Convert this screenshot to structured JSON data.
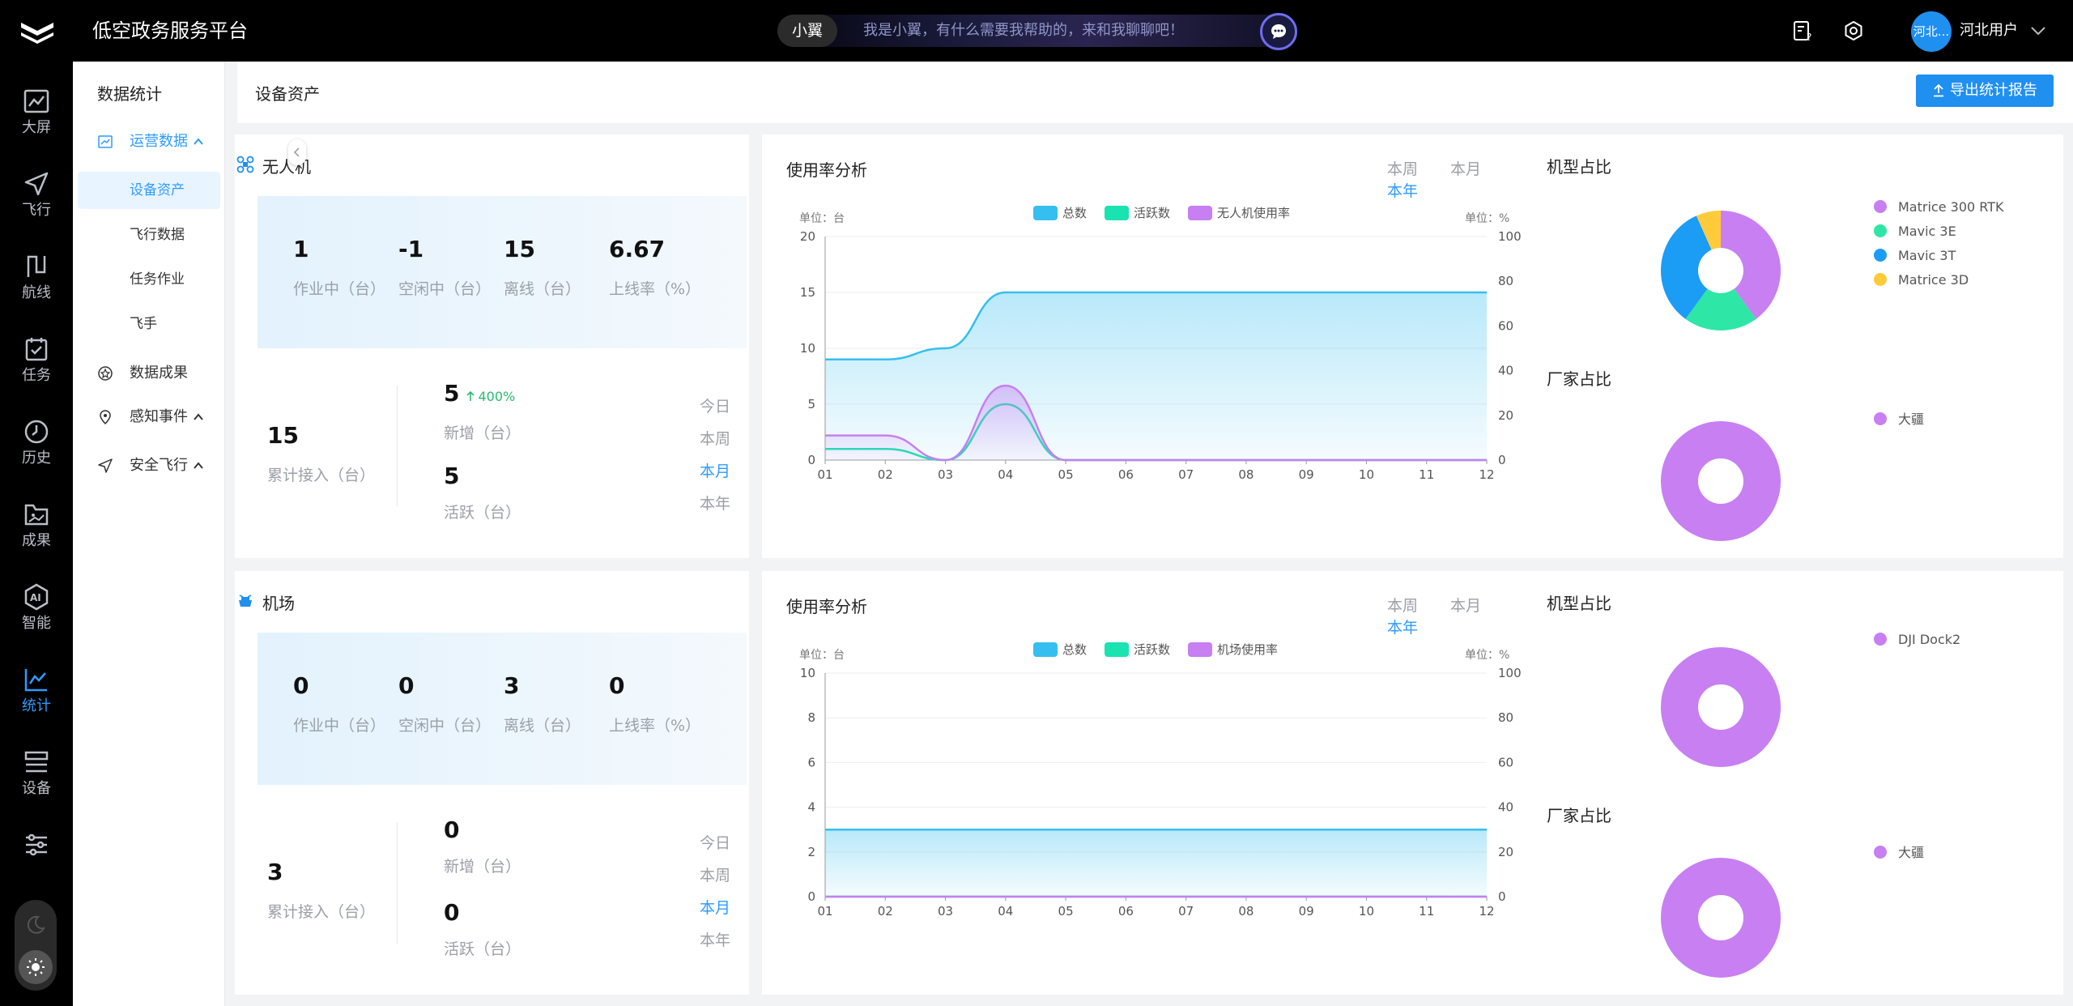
{
  "topbar": {
    "title": "低空政务服务平台",
    "assistant_name": "小翼",
    "assistant_prompt": "我是小翼，有什么需要我帮助的，来和我聊聊吧！",
    "avatar_text": "河北...",
    "user_name": "河北用户"
  },
  "leftnav": [
    {
      "label": "大屏",
      "icon": "monitor-chart-icon"
    },
    {
      "label": "飞行",
      "icon": "paper-plane-icon"
    },
    {
      "label": "航线",
      "icon": "route-icon"
    },
    {
      "label": "任务",
      "icon": "task-checklist-icon"
    },
    {
      "label": "历史",
      "icon": "clock-icon"
    },
    {
      "label": "成果",
      "icon": "result-folder-icon"
    },
    {
      "label": "智能",
      "icon": "ai-icon"
    },
    {
      "label": "统计",
      "icon": "statistics-icon",
      "active": true
    },
    {
      "label": "设备",
      "icon": "device-list-icon"
    },
    {
      "label": "",
      "icon": "settings-sliders-icon"
    }
  ],
  "subnav": {
    "title": "数据统计",
    "groups": [
      {
        "label": "运营数据",
        "open": true,
        "children": [
          "设备资产",
          "飞行数据",
          "任务作业",
          "飞手"
        ]
      },
      {
        "label": "数据成果"
      },
      {
        "label": "感知事件"
      },
      {
        "label": "安全飞行"
      }
    ],
    "active_child": "设备资产"
  },
  "page": {
    "title": "设备资产",
    "export_label": "导出统计报告"
  },
  "drone": {
    "title": "无人机",
    "kpis": [
      {
        "value": "1",
        "label": "作业中（台）"
      },
      {
        "value": "-1",
        "label": "空闲中（台）"
      },
      {
        "value": "15",
        "label": "离线（台）"
      },
      {
        "value": "6.67",
        "label": "上线率（%）"
      }
    ],
    "total": {
      "value": "15",
      "label": "累计接入（台）"
    },
    "new": {
      "value": "5",
      "label": "新增（台）",
      "growth": "400%"
    },
    "active": {
      "value": "5",
      "label": "活跃（台）"
    },
    "periods": [
      "今日",
      "本周",
      "本月",
      "本年"
    ],
    "active_period": "本月"
  },
  "dock": {
    "title": "机场",
    "kpis": [
      {
        "value": "0",
        "label": "作业中（台）"
      },
      {
        "value": "0",
        "label": "空闲中（台）"
      },
      {
        "value": "3",
        "label": "离线（台）"
      },
      {
        "value": "0",
        "label": "上线率（%）"
      }
    ],
    "total": {
      "value": "3",
      "label": "累计接入（台）"
    },
    "new": {
      "value": "0",
      "label": "新增（台）"
    },
    "active": {
      "value": "0",
      "label": "活跃（台）"
    },
    "periods": [
      "今日",
      "本周",
      "本月",
      "本年"
    ],
    "active_period": "本月"
  },
  "usage_tabs": [
    "本周",
    "本月",
    "本年"
  ],
  "usage_active_tab": "本年",
  "chart_data": [
    {
      "type": "line",
      "title": "使用率分析",
      "left_unit": "单位：台",
      "right_unit": "单位：%",
      "x": [
        "01",
        "02",
        "03",
        "04",
        "05",
        "06",
        "07",
        "08",
        "09",
        "10",
        "11",
        "12"
      ],
      "ylim": [
        0,
        20
      ],
      "yticks": [
        0,
        5,
        10,
        15,
        20
      ],
      "y2lim": [
        0,
        100
      ],
      "y2ticks": [
        0,
        20,
        40,
        60,
        80,
        100
      ],
      "grid": true,
      "legend_position": "top-center",
      "series": [
        {
          "name": "总数",
          "color": "#35bff0",
          "axis": "left",
          "area": true,
          "values": [
            9,
            9,
            10,
            15,
            15,
            15,
            15,
            15,
            15,
            15,
            15,
            15
          ]
        },
        {
          "name": "活跃数",
          "color": "#19e3b1",
          "axis": "left",
          "values": [
            1,
            1,
            0,
            5,
            0,
            0,
            0,
            0,
            0,
            0,
            0,
            0
          ]
        },
        {
          "name": "无人机使用率",
          "color": "#c77ff2",
          "axis": "right",
          "area": true,
          "values": [
            11,
            11,
            0,
            33.3,
            0,
            0,
            0,
            0,
            0,
            0,
            0,
            0
          ]
        }
      ]
    },
    {
      "type": "line",
      "title": "使用率分析",
      "left_unit": "单位：台",
      "right_unit": "单位：%",
      "x": [
        "01",
        "02",
        "03",
        "04",
        "05",
        "06",
        "07",
        "08",
        "09",
        "10",
        "11",
        "12"
      ],
      "ylim": [
        0,
        10
      ],
      "yticks": [
        0,
        2,
        4,
        6,
        8,
        10
      ],
      "y2lim": [
        0,
        100
      ],
      "y2ticks": [
        0,
        20,
        40,
        60,
        80,
        100
      ],
      "grid": true,
      "legend_position": "top-center",
      "series": [
        {
          "name": "总数",
          "color": "#35bff0",
          "axis": "left",
          "area": true,
          "values": [
            3,
            3,
            3,
            3,
            3,
            3,
            3,
            3,
            3,
            3,
            3,
            3
          ]
        },
        {
          "name": "活跃数",
          "color": "#19e3b1",
          "axis": "left",
          "values": [
            0,
            0,
            0,
            0,
            0,
            0,
            0,
            0,
            0,
            0,
            0,
            0
          ]
        },
        {
          "name": "机场使用率",
          "color": "#c77ff2",
          "axis": "right",
          "area": true,
          "values": [
            0,
            0,
            0,
            0,
            0,
            0,
            0,
            0,
            0,
            0,
            0,
            0
          ]
        }
      ]
    },
    {
      "type": "pie",
      "title": "机型占比",
      "labels": [
        "Matrice 300 RTK",
        "Mavic 3E",
        "Mavic 3T",
        "Matrice 3D"
      ],
      "values": [
        6,
        3,
        5,
        1
      ],
      "colors": [
        "#c77ff2",
        "#2ee6a6",
        "#1b9cf5",
        "#ffcb3a"
      ],
      "legend_position": "right"
    },
    {
      "type": "pie",
      "title": "厂家占比",
      "labels": [
        "大疆"
      ],
      "values": [
        15
      ],
      "colors": [
        "#c77ff2"
      ],
      "legend_position": "right"
    },
    {
      "type": "pie",
      "title": "机型占比",
      "labels": [
        "DJI Dock2"
      ],
      "values": [
        3
      ],
      "colors": [
        "#c77ff2"
      ],
      "legend_position": "right"
    },
    {
      "type": "pie",
      "title": "厂家占比",
      "labels": [
        "大疆"
      ],
      "values": [
        3
      ],
      "colors": [
        "#c77ff2"
      ],
      "legend_position": "right"
    }
  ]
}
